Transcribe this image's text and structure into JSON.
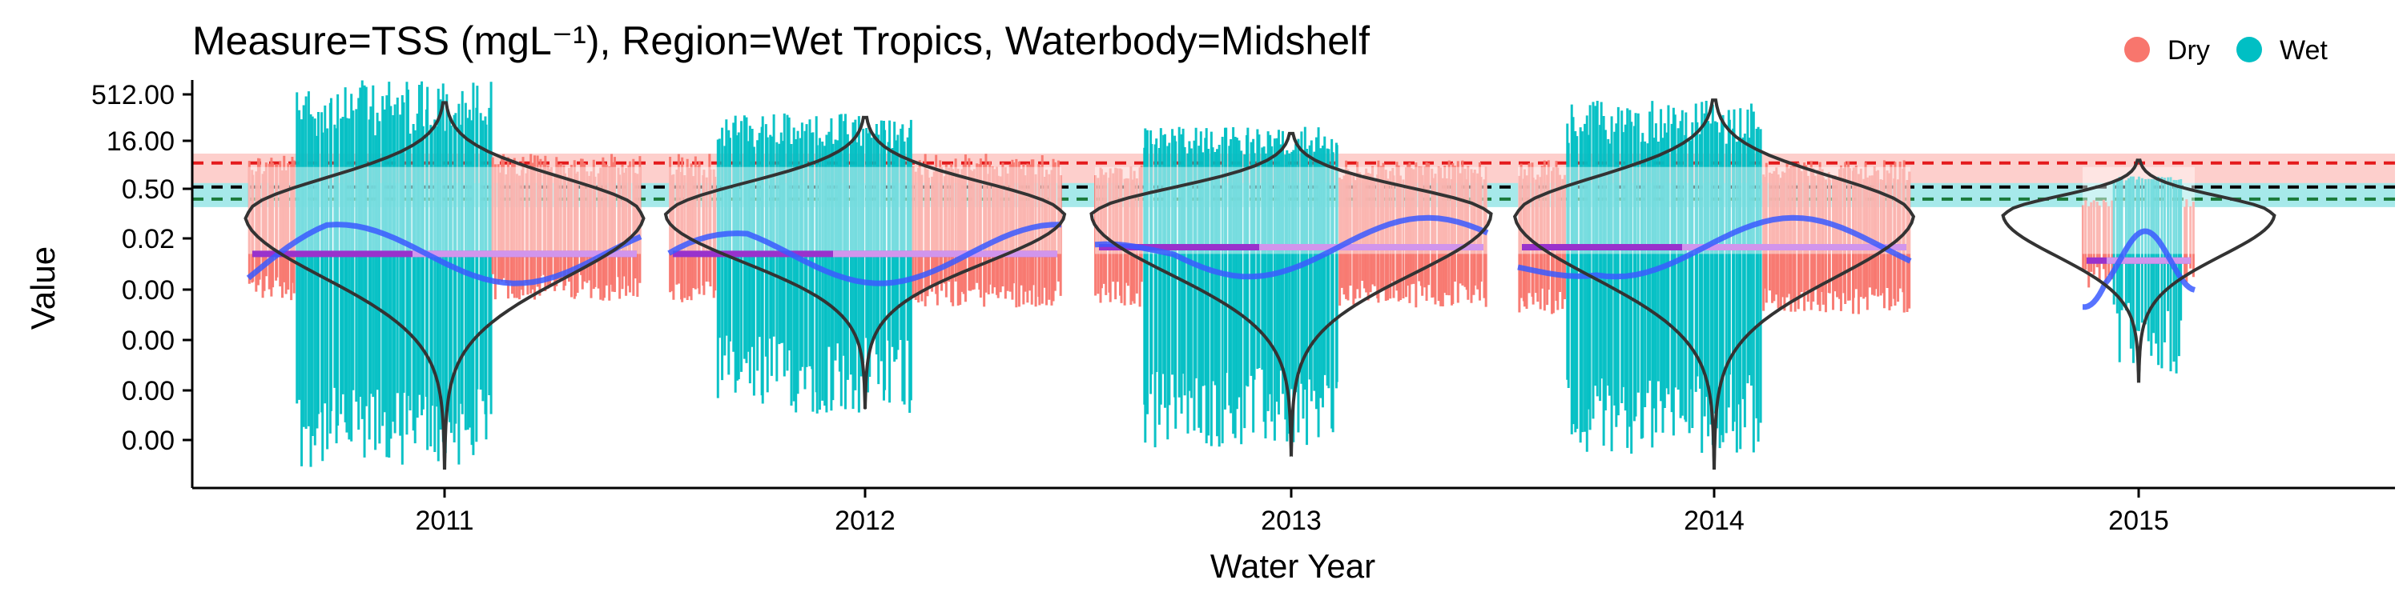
{
  "chart_data": {
    "type": "scatter",
    "title": "Measure=TSS (mgL⁻¹), Region=Wet Tropics, Waterbody=Midshelf",
    "xlabel": "Water Year",
    "ylabel": "Value",
    "x_ticks": [
      "2011",
      "2012",
      "2013",
      "2014",
      "2015"
    ],
    "y_ticks": [
      "512.00",
      "16.00",
      "0.50",
      "0.02",
      "0.00",
      "0.00",
      "0.00",
      "0.00"
    ],
    "y_log_exponent_range": [
      -20,
      9
    ],
    "y_scale": "log2",
    "legend": {
      "placement": "top-right",
      "entries": [
        {
          "label": "Dry",
          "color": "#F8766D"
        },
        {
          "label": "Wet",
          "color": "#00BFC4"
        }
      ]
    },
    "guidelines": [
      {
        "name": "upper",
        "value_log2": 2.8,
        "color": "#e41a1c",
        "style": "dashed"
      },
      {
        "name": "middle",
        "value_log2": 1.0,
        "color": "#000000",
        "style": "dashed"
      },
      {
        "name": "lower",
        "value_log2": 0.1,
        "color": "#1b7a3a",
        "style": "dashed"
      }
    ],
    "guideline_bands": [
      {
        "from_log2": 1.3,
        "to_log2": 3.5,
        "color": "#F8766D"
      },
      {
        "from_log2": -0.5,
        "to_log2": 1.3,
        "color": "#00BFC4"
      }
    ],
    "years": [
      {
        "year": "2011",
        "median_log2": -4.0,
        "violin_min_log2": -20.0,
        "violin_max_log2": 7.3,
        "violin_peak_log2": -1.0,
        "dry_points": {
          "min_log2": -7.5,
          "max_log2": 5.0
        },
        "wet_points": {
          "min_log2": -20.0,
          "max_log2": 9.0
        }
      },
      {
        "year": "2012",
        "median_log2": -4.0,
        "violin_min_log2": -15.5,
        "violin_max_log2": 6.2,
        "violin_peak_log2": -1.0,
        "dry_points": {
          "min_log2": -8.0,
          "max_log2": 5.0
        },
        "wet_points": {
          "min_log2": -16.0,
          "max_log2": 6.5
        }
      },
      {
        "year": "2013",
        "median_log2": -3.5,
        "violin_min_log2": -19.0,
        "violin_max_log2": 5.0,
        "violin_peak_log2": -1.0,
        "dry_points": {
          "min_log2": -8.0,
          "max_log2": 4.5
        },
        "wet_points": {
          "min_log2": -18.5,
          "max_log2": 5.5
        }
      },
      {
        "year": "2014",
        "median_log2": -3.5,
        "violin_min_log2": -20.0,
        "violin_max_log2": 7.5,
        "violin_peak_log2": -1.0,
        "dry_points": {
          "min_log2": -8.5,
          "max_log2": 4.5
        },
        "wet_points": {
          "min_log2": -19.0,
          "max_log2": 7.5
        }
      },
      {
        "year": "2015",
        "median_log2": -4.5,
        "violin_min_log2": -13.5,
        "violin_max_log2": 3.0,
        "violin_peak_log2": -1.0,
        "dry_points": {
          "min_log2": -7.0,
          "max_log2": 1.0
        },
        "wet_points": {
          "min_log2": -13.0,
          "max_log2": 1.5
        }
      }
    ],
    "grid": false
  }
}
